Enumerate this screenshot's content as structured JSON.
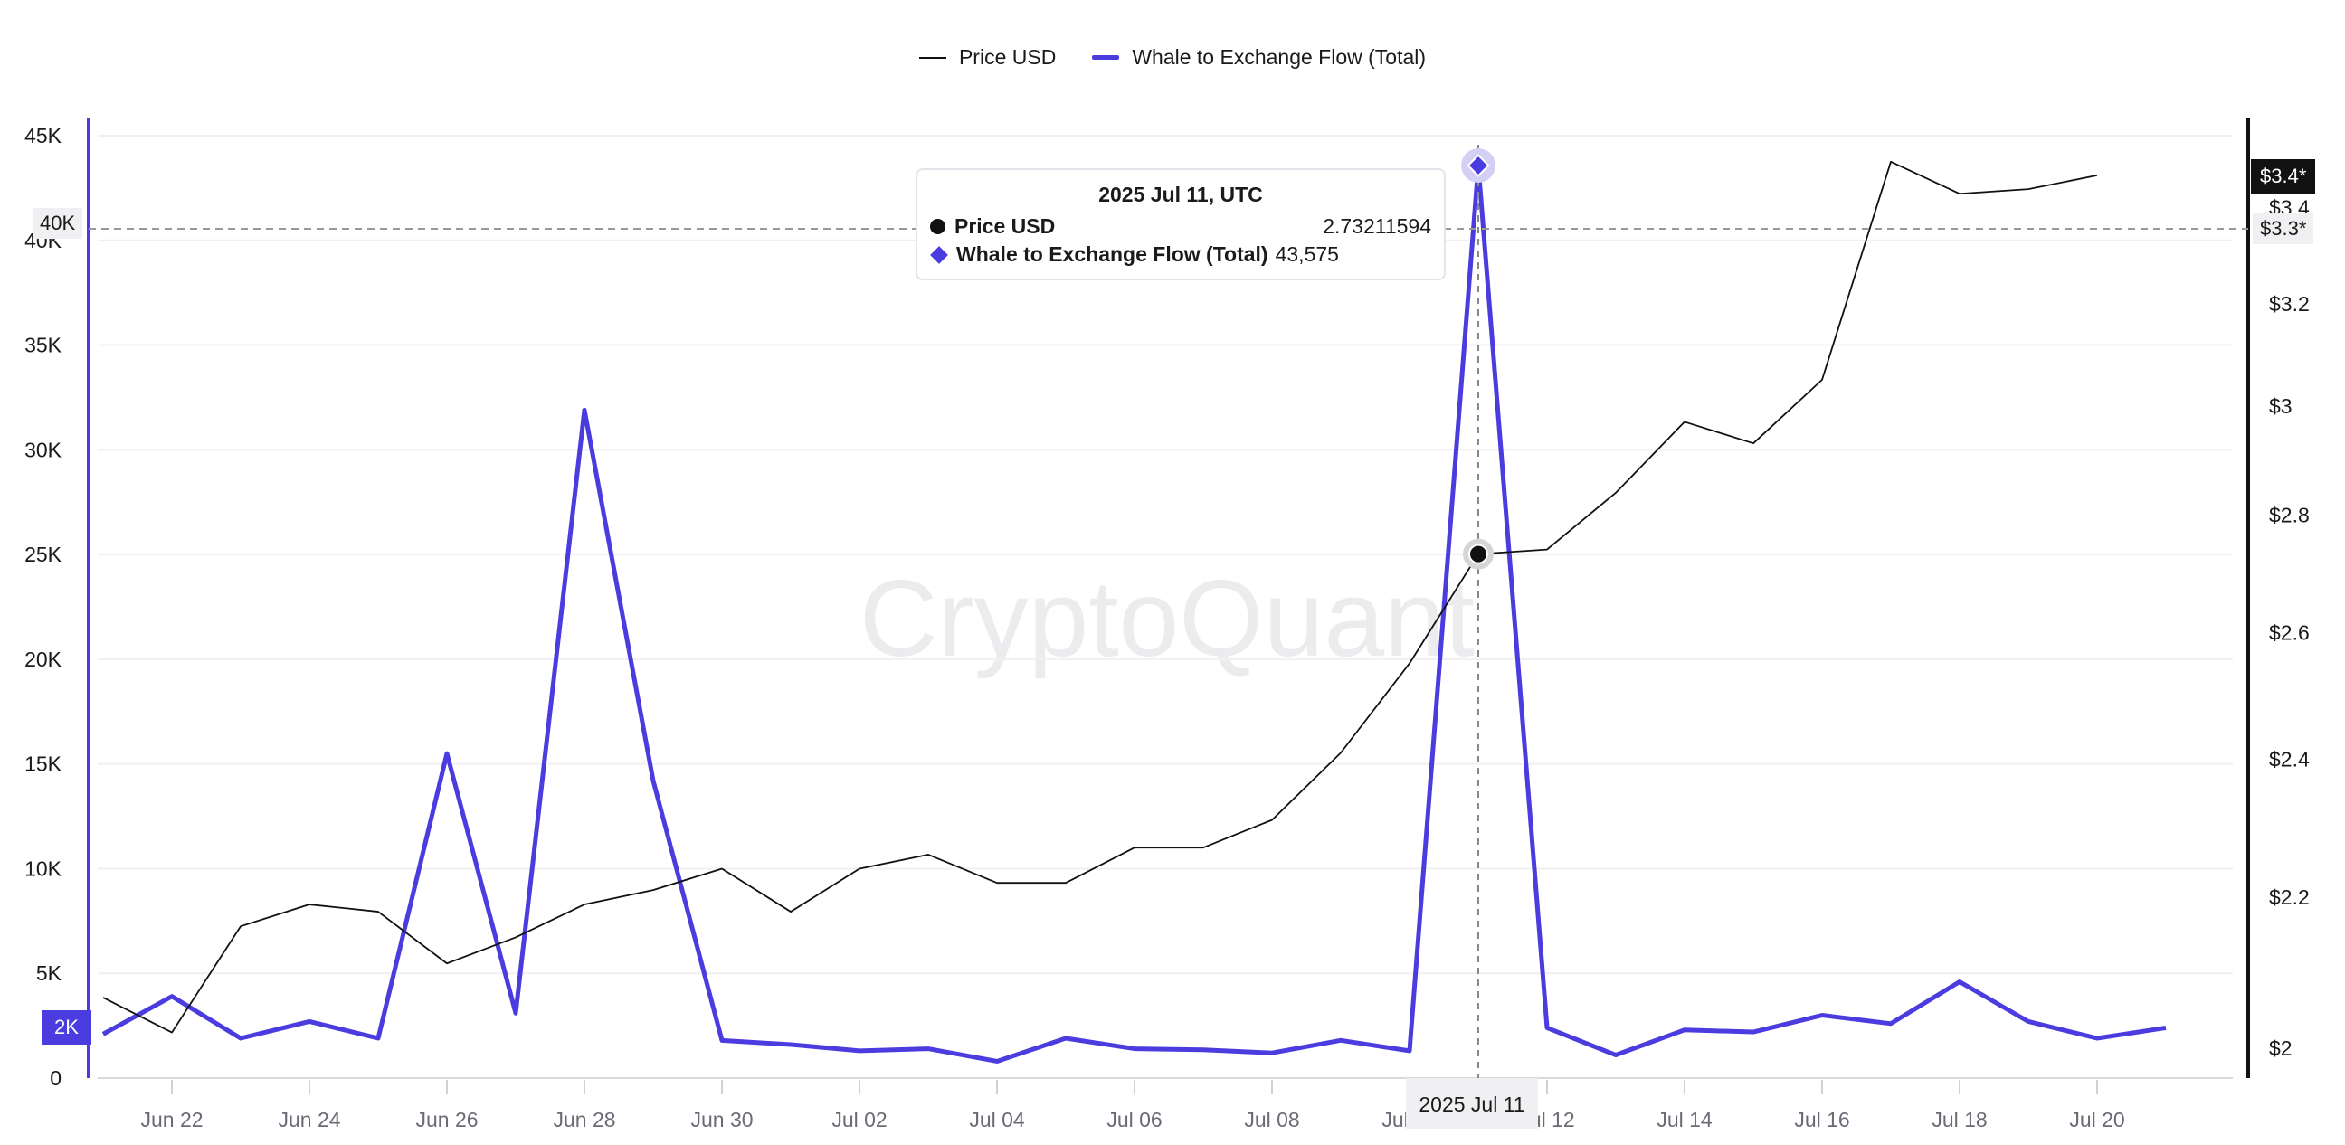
{
  "legend": {
    "price": "Price USD",
    "flow": "Whale to Exchange Flow (Total)"
  },
  "watermark": "CryptoQuant",
  "tooltip": {
    "title": "2025 Jul 11, UTC",
    "price_label": "Price USD",
    "price_value": "2.73211594",
    "flow_label": "Whale to Exchange Flow (Total)",
    "flow_value": "43,575"
  },
  "crosshair": {
    "x_label": "2025 Jul 11",
    "left_label": "40K",
    "right_label": "$3.3*"
  },
  "badges": {
    "left_current": "2K",
    "right_current": "$3.4*"
  },
  "colors": {
    "price": "#111111",
    "flow": "#4b3ce0",
    "grid": "#f0f0f3"
  },
  "chart_data": {
    "type": "line",
    "x": [
      "Jun 21",
      "Jun 22",
      "Jun 23",
      "Jun 24",
      "Jun 25",
      "Jun 26",
      "Jun 27",
      "Jun 28",
      "Jun 29",
      "Jun 30",
      "Jul 01",
      "Jul 02",
      "Jul 03",
      "Jul 04",
      "Jul 05",
      "Jul 06",
      "Jul 07",
      "Jul 08",
      "Jul 09",
      "Jul 10",
      "Jul 11",
      "Jul 12",
      "Jul 13",
      "Jul 14",
      "Jul 15",
      "Jul 16",
      "Jul 17",
      "Jul 18",
      "Jul 19",
      "Jul 20",
      "Jul 21"
    ],
    "series": [
      {
        "name": "Whale to Exchange Flow (Total)",
        "axis": "left",
        "values": [
          2100,
          3900,
          1900,
          2700,
          1900,
          15500,
          3100,
          31900,
          14200,
          1800,
          1600,
          1300,
          1400,
          800,
          1900,
          1400,
          1350,
          1200,
          1800,
          1300,
          43575,
          2400,
          1100,
          2300,
          2200,
          3000,
          2600,
          4600,
          2700,
          1900,
          2400
        ]
      },
      {
        "name": "Price USD",
        "axis": "right",
        "values": [
          2.065,
          2.02,
          2.16,
          2.19,
          2.18,
          2.11,
          2.145,
          2.19,
          2.21,
          2.24,
          2.18,
          2.24,
          2.26,
          2.22,
          2.22,
          2.27,
          2.27,
          2.31,
          2.41,
          2.55,
          2.73211594,
          2.74,
          2.84,
          2.97,
          2.93,
          3.05,
          3.5,
          3.43,
          3.44,
          3.47,
          null
        ]
      }
    ],
    "x_ticks": [
      "Jun 22",
      "Jun 24",
      "Jun 26",
      "Jun 28",
      "Jun 30",
      "Jul 02",
      "Jul 04",
      "Jul 06",
      "Jul 08",
      "Jul 10",
      "Jul 12",
      "Jul 14",
      "Jul 16",
      "Jul 18",
      "Jul 20"
    ],
    "left_axis": {
      "ticks": [
        "0",
        "5K",
        "10K",
        "15K",
        "20K",
        "25K",
        "30K",
        "35K",
        "40K",
        "45K"
      ],
      "range": [
        0,
        45000
      ],
      "scale": "linear"
    },
    "right_axis": {
      "ticks": [
        "$2",
        "$2.2",
        "$2.4",
        "$2.6",
        "$2.8",
        "$3",
        "$3.2",
        "$3.4"
      ],
      "tick_values": [
        2,
        2.2,
        2.4,
        2.6,
        2.8,
        3,
        3.2,
        3.4
      ],
      "scale": "log"
    },
    "grid": true,
    "legend_position": "top-center"
  }
}
